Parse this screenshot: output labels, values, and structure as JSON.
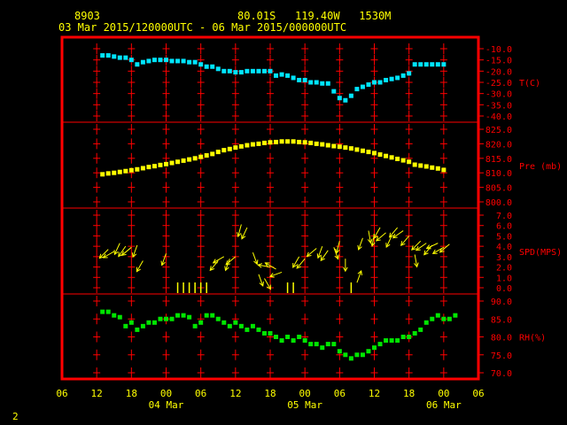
{
  "header": {
    "station": "8903",
    "location": "80.01S   119.40W   1530M",
    "period": "03 Mar 2015/120000UTC - 06 Mar 2015/000000UTC"
  },
  "page_number": "2",
  "colors": {
    "frame": "#ff0000",
    "text": "#ffff00",
    "temperature": "#00e5ff",
    "pressure": "#ffff00",
    "wind": "#ffff00",
    "humidity": "#00e600"
  },
  "chart_data": {
    "type": "scatter",
    "x_axis": {
      "unit": "hours from 03 Mar 00UTC",
      "range": [
        6,
        78
      ],
      "tick_labels": [
        "06",
        "12",
        "18",
        "00",
        "06",
        "12",
        "18",
        "00",
        "06",
        "12",
        "18",
        "00",
        "06"
      ],
      "date_labels": [
        {
          "hour": 24,
          "label": "04 Mar"
        },
        {
          "hour": 48,
          "label": "05 Mar"
        },
        {
          "hour": 72,
          "label": "06 Mar"
        }
      ]
    },
    "panels": [
      {
        "name": "temperature",
        "label": "T(C)",
        "ylim": [
          -40,
          -10
        ],
        "ticks": [
          "-10.0",
          "-15.0",
          "-20.0",
          "-25.0",
          "-30.0",
          "-35.0",
          "-40.0"
        ],
        "points": [
          [
            13,
            -13
          ],
          [
            14,
            -13
          ],
          [
            15,
            -13.5
          ],
          [
            16,
            -14
          ],
          [
            17,
            -14
          ],
          [
            18,
            -15
          ],
          [
            19,
            -17
          ],
          [
            20,
            -16
          ],
          [
            21,
            -15.5
          ],
          [
            22,
            -15
          ],
          [
            23,
            -15
          ],
          [
            24,
            -15
          ],
          [
            25,
            -15.5
          ],
          [
            26,
            -15.5
          ],
          [
            27,
            -15.5
          ],
          [
            28,
            -16
          ],
          [
            29,
            -16
          ],
          [
            30,
            -17
          ],
          [
            31,
            -18
          ],
          [
            32,
            -18
          ],
          [
            33,
            -19
          ],
          [
            34,
            -20
          ],
          [
            35,
            -20
          ],
          [
            36,
            -20.5
          ],
          [
            37,
            -20.5
          ],
          [
            38,
            -20
          ],
          [
            39,
            -20
          ],
          [
            40,
            -20
          ],
          [
            41,
            -20
          ],
          [
            42,
            -20
          ],
          [
            43,
            -22
          ],
          [
            44,
            -21.5
          ],
          [
            45,
            -22
          ],
          [
            46,
            -23
          ],
          [
            47,
            -24
          ],
          [
            48,
            -24
          ],
          [
            49,
            -25
          ],
          [
            50,
            -25
          ],
          [
            51,
            -25.5
          ],
          [
            52,
            -25.5
          ],
          [
            53,
            -29
          ],
          [
            54,
            -32
          ],
          [
            55,
            -33
          ],
          [
            56,
            -31
          ],
          [
            57,
            -28
          ],
          [
            58,
            -27
          ],
          [
            59,
            -26
          ],
          [
            60,
            -25
          ],
          [
            61,
            -25
          ],
          [
            62,
            -24
          ],
          [
            63,
            -23.5
          ],
          [
            64,
            -23
          ],
          [
            65,
            -22
          ],
          [
            66,
            -21
          ],
          [
            67,
            -17
          ],
          [
            68,
            -17
          ],
          [
            69,
            -17
          ],
          [
            70,
            -17
          ],
          [
            71,
            -17
          ],
          [
            72,
            -17
          ]
        ]
      },
      {
        "name": "pressure",
        "label": "Pre (mb)",
        "ylim": [
          800,
          825
        ],
        "ticks": [
          "825.0",
          "820.0",
          "815.0",
          "810.0",
          "805.0",
          "800.0"
        ],
        "points": [
          [
            13,
            809.5
          ],
          [
            14,
            809.8
          ],
          [
            15,
            810
          ],
          [
            16,
            810.3
          ],
          [
            17,
            810.6
          ],
          [
            18,
            810.9
          ],
          [
            19,
            811.2
          ],
          [
            20,
            811.6
          ],
          [
            21,
            812
          ],
          [
            22,
            812.3
          ],
          [
            23,
            812.7
          ],
          [
            24,
            813
          ],
          [
            25,
            813.4
          ],
          [
            26,
            813.8
          ],
          [
            27,
            814.2
          ],
          [
            28,
            814.6
          ],
          [
            29,
            815
          ],
          [
            30,
            815.5
          ],
          [
            31,
            816
          ],
          [
            32,
            816.5
          ],
          [
            33,
            817.2
          ],
          [
            34,
            817.8
          ],
          [
            35,
            818.2
          ],
          [
            36,
            818.7
          ],
          [
            37,
            819.1
          ],
          [
            38,
            819.5
          ],
          [
            39,
            819.8
          ],
          [
            40,
            820
          ],
          [
            41,
            820.3
          ],
          [
            42,
            820.5
          ],
          [
            43,
            820.6
          ],
          [
            44,
            820.8
          ],
          [
            45,
            820.8
          ],
          [
            46,
            820.8
          ],
          [
            47,
            820.6
          ],
          [
            48,
            820.5
          ],
          [
            49,
            820.3
          ],
          [
            50,
            820
          ],
          [
            51,
            819.8
          ],
          [
            52,
            819.5
          ],
          [
            53,
            819.2
          ],
          [
            54,
            819
          ],
          [
            55,
            818.7
          ],
          [
            56,
            818.4
          ],
          [
            57,
            818
          ],
          [
            58,
            817.6
          ],
          [
            59,
            817.2
          ],
          [
            60,
            816.8
          ],
          [
            61,
            816.3
          ],
          [
            62,
            815.8
          ],
          [
            63,
            815.3
          ],
          [
            64,
            814.8
          ],
          [
            65,
            814.3
          ],
          [
            66,
            813.8
          ],
          [
            67,
            812.8
          ],
          [
            68,
            812.5
          ],
          [
            69,
            812.2
          ],
          [
            70,
            811.8
          ],
          [
            71,
            811.5
          ],
          [
            72,
            811
          ]
        ]
      },
      {
        "name": "wind",
        "label": "SPD(MPS)",
        "ylim": [
          0,
          7
        ],
        "ticks": [
          "7.0",
          "6.0",
          "5.0",
          "4.0",
          "3.0",
          "2.0",
          "1.0",
          "0.0"
        ],
        "points": [
          [
            14,
            3.7,
            225
          ],
          [
            15,
            3.5,
            240
          ],
          [
            16,
            4.3,
            205
          ],
          [
            17,
            4,
            215
          ],
          [
            18,
            3.9,
            230
          ],
          [
            19,
            4.1,
            200
          ],
          [
            20,
            2.6,
            210
          ],
          [
            24,
            3.3,
            200
          ],
          [
            26,
            0,
            180
          ],
          [
            27,
            0,
            180
          ],
          [
            28,
            0,
            180
          ],
          [
            29,
            0,
            180
          ],
          [
            30,
            0,
            180
          ],
          [
            31,
            0,
            270
          ],
          [
            33,
            2.6,
            220
          ],
          [
            34,
            3,
            240
          ],
          [
            35,
            2.8,
            200
          ],
          [
            36,
            3,
            230
          ],
          [
            37,
            6.1,
            195
          ],
          [
            38,
            5.8,
            205
          ],
          [
            39,
            3.4,
            160
          ],
          [
            40,
            1.3,
            160
          ],
          [
            41,
            0.9,
            150
          ],
          [
            42,
            2,
            280
          ],
          [
            43,
            1.8,
            300
          ],
          [
            44,
            1.5,
            250
          ],
          [
            45,
            0,
            180
          ],
          [
            46,
            0,
            180
          ],
          [
            47,
            3,
            210
          ],
          [
            48,
            2.8,
            220
          ],
          [
            50,
            3.8,
            230
          ],
          [
            51,
            4,
            200
          ],
          [
            52,
            3.6,
            215
          ],
          [
            53,
            3.9,
            160
          ],
          [
            54,
            4.5,
            195
          ],
          [
            55,
            2.8,
            180
          ],
          [
            56,
            0,
            180
          ],
          [
            57,
            0.5,
            20
          ],
          [
            58,
            4.8,
            200
          ],
          [
            59,
            5.5,
            170
          ],
          [
            60,
            5.2,
            190
          ],
          [
            61,
            5.8,
            210
          ],
          [
            62,
            5.3,
            230
          ],
          [
            63,
            5,
            205
          ],
          [
            64,
            5.8,
            220
          ],
          [
            65,
            5.5,
            235
          ],
          [
            66,
            5,
            220
          ],
          [
            67,
            3.2,
            170
          ],
          [
            68,
            4.5,
            225
          ],
          [
            69,
            4.3,
            235
          ],
          [
            70,
            4.1,
            220
          ],
          [
            71,
            4.3,
            245
          ],
          [
            72,
            3.9,
            240
          ],
          [
            73,
            4.2,
            230
          ]
        ]
      },
      {
        "name": "humidity",
        "label": "RH(%)",
        "ylim": [
          70,
          90
        ],
        "ticks": [
          "90.0",
          "85.0",
          "80.0",
          "75.0",
          "70.0"
        ],
        "points": [
          [
            13,
            87
          ],
          [
            14,
            87
          ],
          [
            15,
            86
          ],
          [
            16,
            85.5
          ],
          [
            17,
            83
          ],
          [
            18,
            84
          ],
          [
            19,
            82
          ],
          [
            20,
            83
          ],
          [
            21,
            84
          ],
          [
            22,
            84
          ],
          [
            23,
            85
          ],
          [
            24,
            85
          ],
          [
            25,
            85
          ],
          [
            26,
            86
          ],
          [
            27,
            86
          ],
          [
            28,
            85.5
          ],
          [
            29,
            83
          ],
          [
            30,
            84
          ],
          [
            31,
            86
          ],
          [
            32,
            86
          ],
          [
            33,
            85
          ],
          [
            34,
            84
          ],
          [
            35,
            83
          ],
          [
            36,
            84
          ],
          [
            37,
            83
          ],
          [
            38,
            82
          ],
          [
            39,
            83
          ],
          [
            40,
            82
          ],
          [
            41,
            81
          ],
          [
            42,
            81
          ],
          [
            43,
            80
          ],
          [
            44,
            79
          ],
          [
            45,
            80
          ],
          [
            46,
            79
          ],
          [
            47,
            80
          ],
          [
            48,
            79
          ],
          [
            49,
            78
          ],
          [
            50,
            78
          ],
          [
            51,
            77
          ],
          [
            52,
            78
          ],
          [
            53,
            78
          ],
          [
            54,
            76
          ],
          [
            55,
            75
          ],
          [
            56,
            74
          ],
          [
            57,
            75
          ],
          [
            58,
            75
          ],
          [
            59,
            76
          ],
          [
            60,
            77
          ],
          [
            61,
            78
          ],
          [
            62,
            79
          ],
          [
            63,
            79
          ],
          [
            64,
            79
          ],
          [
            65,
            80
          ],
          [
            66,
            80
          ],
          [
            67,
            81
          ],
          [
            68,
            82
          ],
          [
            69,
            84
          ],
          [
            70,
            85
          ],
          [
            71,
            86
          ],
          [
            72,
            85
          ],
          [
            73,
            85
          ],
          [
            74,
            86
          ]
        ]
      }
    ]
  }
}
